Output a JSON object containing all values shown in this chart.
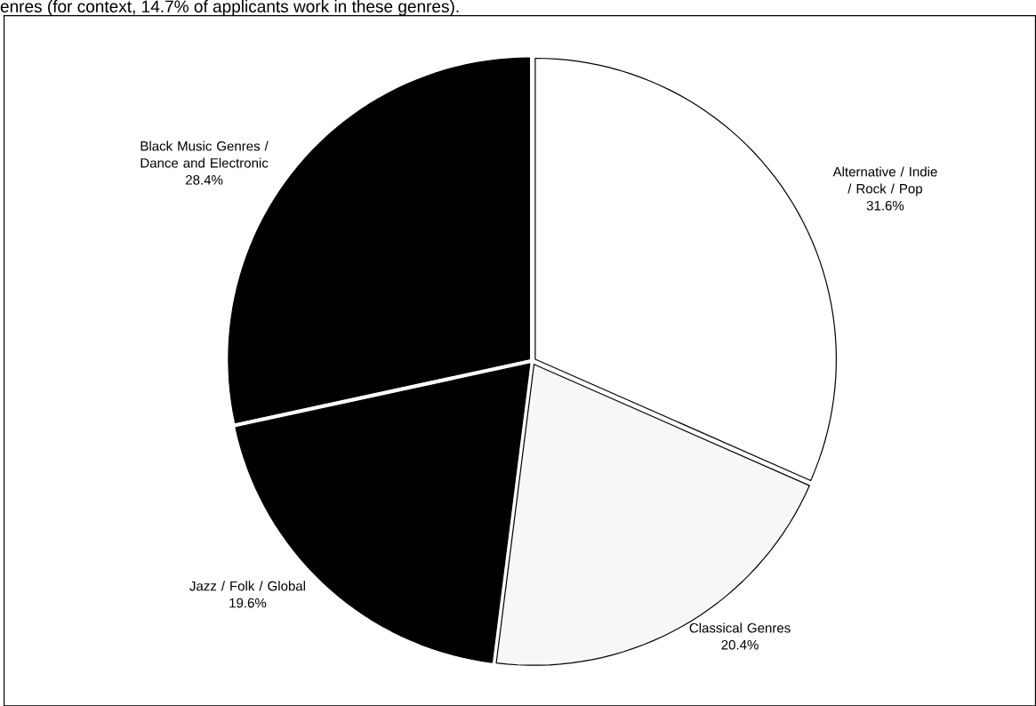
{
  "chart_data": {
    "type": "pie",
    "title": "enres (for context, 14.7% of applicants work in these genres).",
    "categories": [
      "Alternative / Indie / Rock / Pop",
      "Classical Genres",
      "Jazz / Folk / Global",
      "Black Music Genres / Dance and Electronic"
    ],
    "values": [
      31.6,
      20.4,
      19.6,
      28.4
    ],
    "value_labels": [
      "31.6%",
      "20.4%",
      "19.6%",
      "28.4%"
    ],
    "colors": [
      "#ffffff",
      "#f7f7f7",
      "#000000",
      "#000000"
    ]
  }
}
